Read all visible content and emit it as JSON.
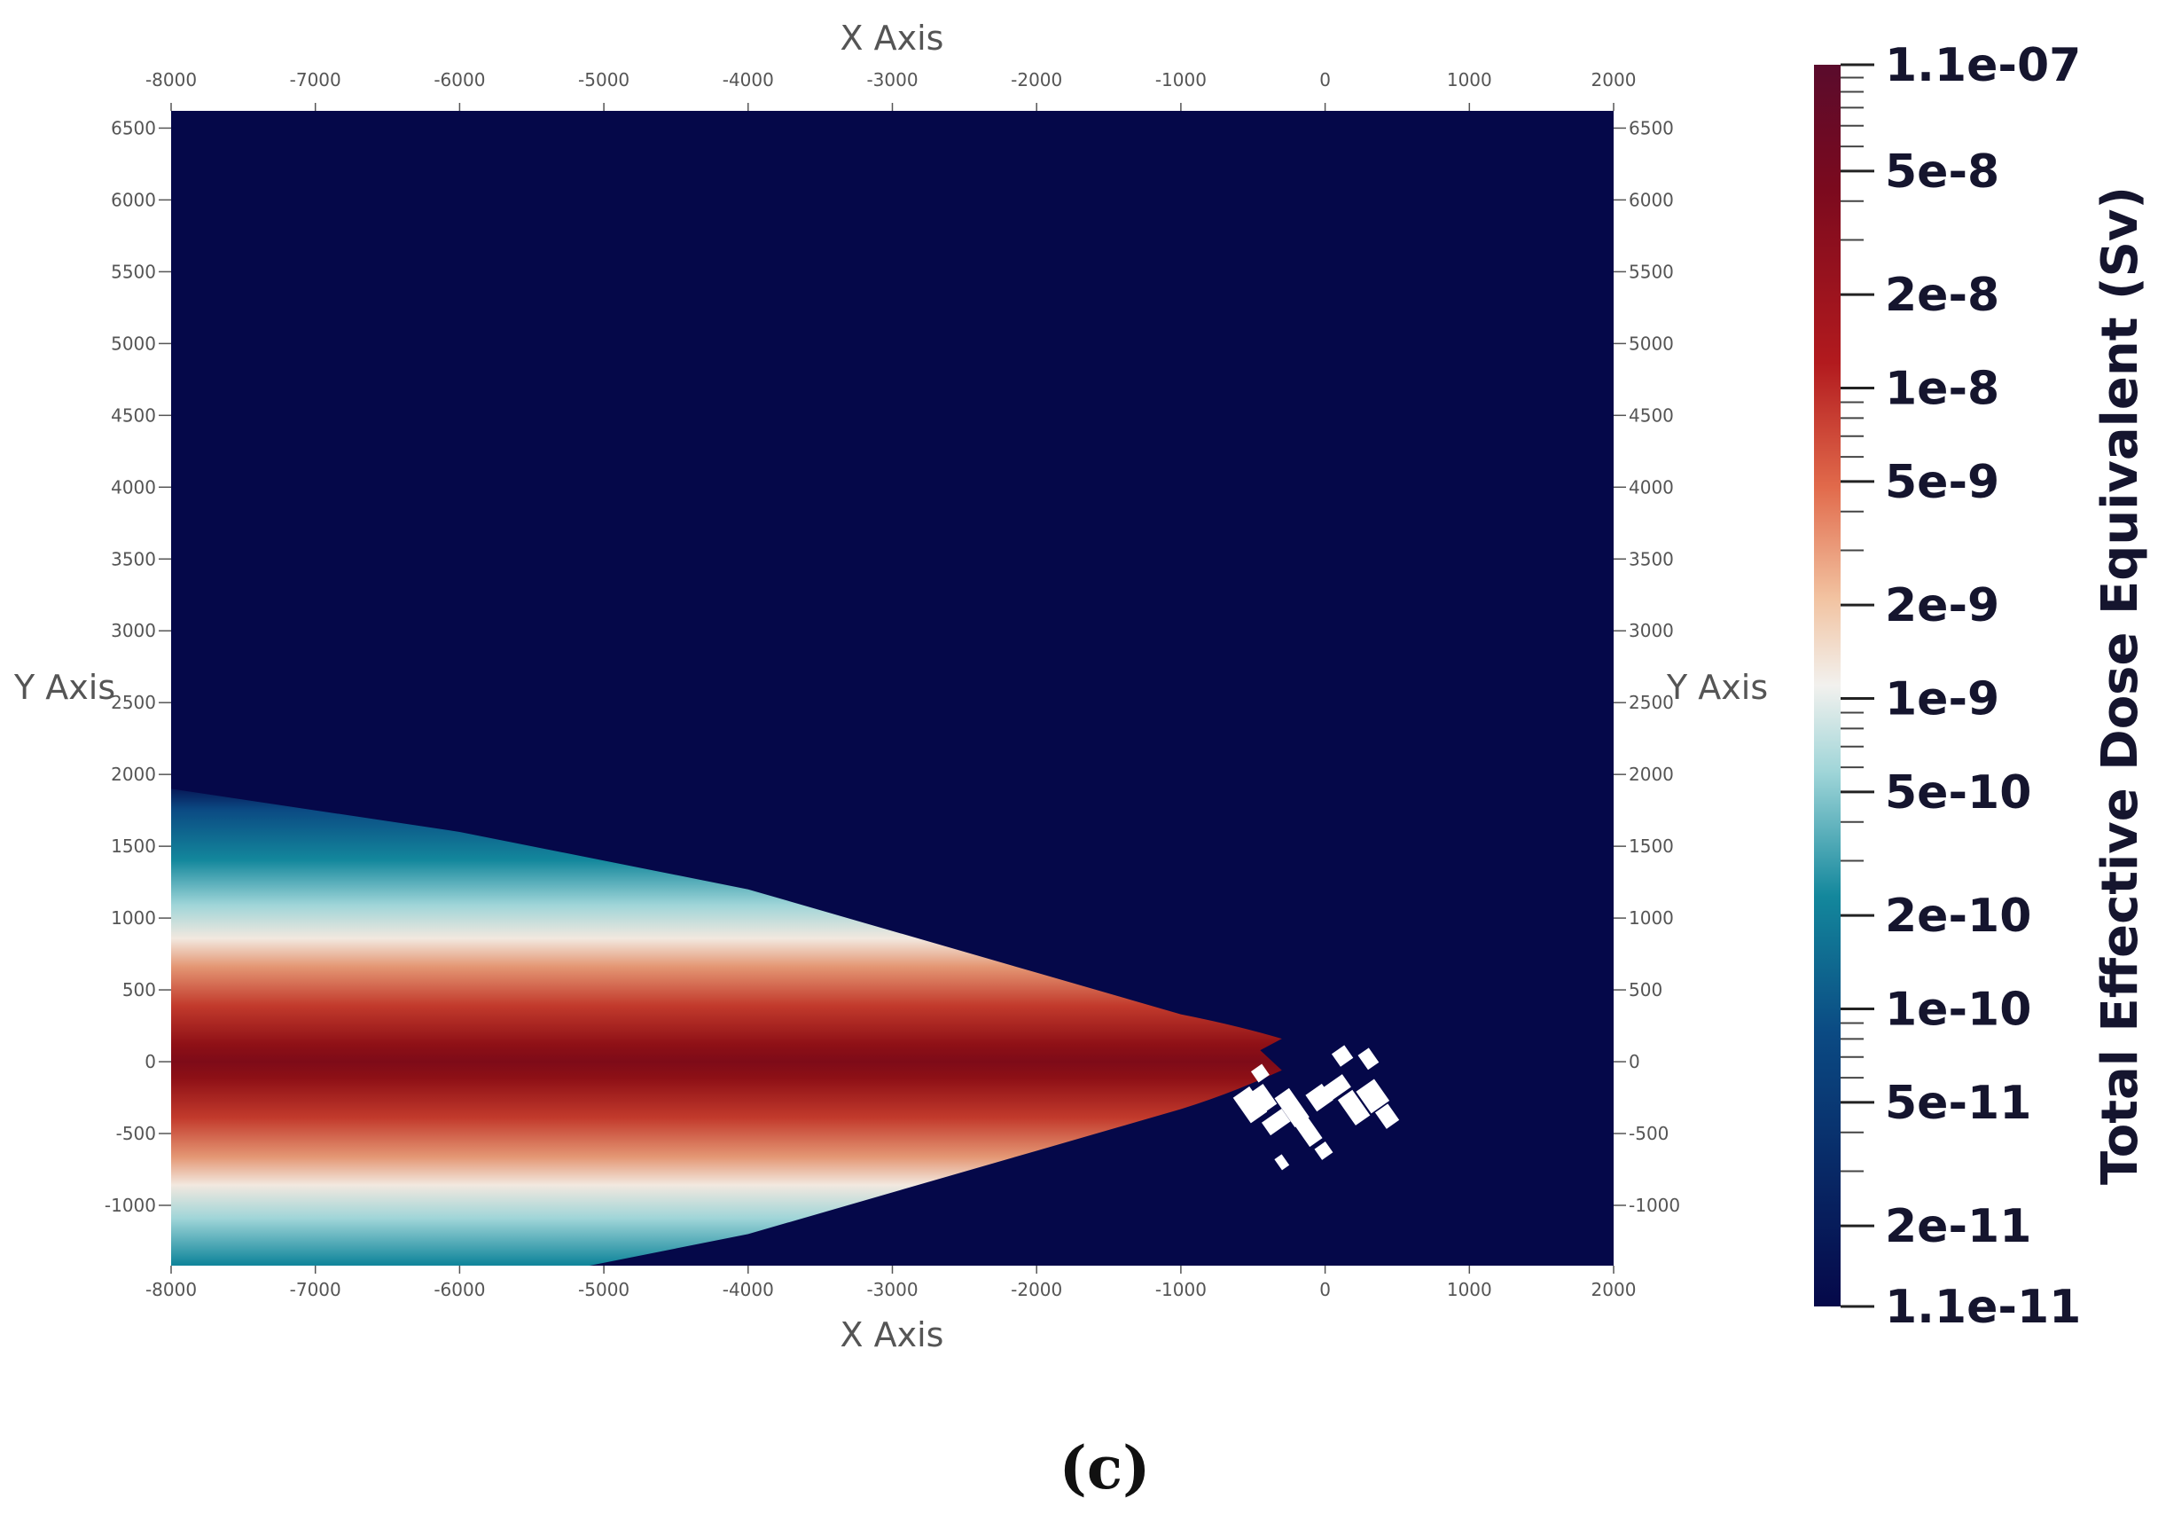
{
  "chart_data": {
    "type": "heatmap",
    "subtype": "2d dose contour plot, plume",
    "xlabel": "X Axis",
    "ylabel": "Y Axis",
    "xlim": [
      -8000,
      2000
    ],
    "ylim": [
      -1420,
      6620
    ],
    "x_ticks": [
      -8000,
      -7000,
      -6000,
      -5000,
      -4000,
      -3000,
      -2000,
      -1000,
      0,
      1000,
      2000
    ],
    "y_ticks": [
      -1000,
      -500,
      0,
      500,
      1000,
      1500,
      2000,
      2500,
      3000,
      3500,
      4000,
      4500,
      5000,
      5500,
      6000,
      6500
    ],
    "background_color": "#050849",
    "colorbar": {
      "title": "Total Effective Dose Equivalent (Sv)",
      "scale": "log",
      "range": [
        1.1e-11,
        1.1e-07
      ],
      "labels": [
        {
          "text": "1.1e-07",
          "value": 1.1e-07
        },
        {
          "text": "5e-8",
          "value": 5e-08
        },
        {
          "text": "2e-8",
          "value": 2e-08
        },
        {
          "text": "1e-8",
          "value": 1e-08
        },
        {
          "text": "5e-9",
          "value": 5e-09
        },
        {
          "text": "2e-9",
          "value": 2e-09
        },
        {
          "text": "1e-9",
          "value": 1e-09
        },
        {
          "text": "5e-10",
          "value": 5e-10
        },
        {
          "text": "2e-10",
          "value": 2e-10
        },
        {
          "text": "1e-10",
          "value": 1e-10
        },
        {
          "text": "5e-11",
          "value": 5e-11
        },
        {
          "text": "2e-11",
          "value": 2e-11
        },
        {
          "text": "1.1e-11",
          "value": 1.1e-11
        }
      ],
      "colors": [
        "#050849",
        "#0b4a83",
        "#13879c",
        "#9fd5d8",
        "#f2f1ee",
        "#f2c3a1",
        "#e16a4b",
        "#b21a1e",
        "#7b0a1e",
        "#5a0b2c"
      ]
    },
    "plume": {
      "source": [
        -450,
        80
      ],
      "centerline_y": 0,
      "half_width_at_x": [
        {
          "x": -8000,
          "outer": 1900,
          "mid": 1150
        },
        {
          "x": -6000,
          "outer": 1600,
          "mid": 1000
        },
        {
          "x": -4000,
          "outer": 1200,
          "mid": 780
        },
        {
          "x": -2000,
          "outer": 620,
          "mid": 400
        },
        {
          "x": -1000,
          "outer": 330,
          "mid": 210
        }
      ]
    },
    "buildings_region": {
      "x": [
        -600,
        600
      ],
      "y": [
        -800,
        100
      ],
      "color": "#ffffff"
    }
  },
  "panel_label": "(c)"
}
